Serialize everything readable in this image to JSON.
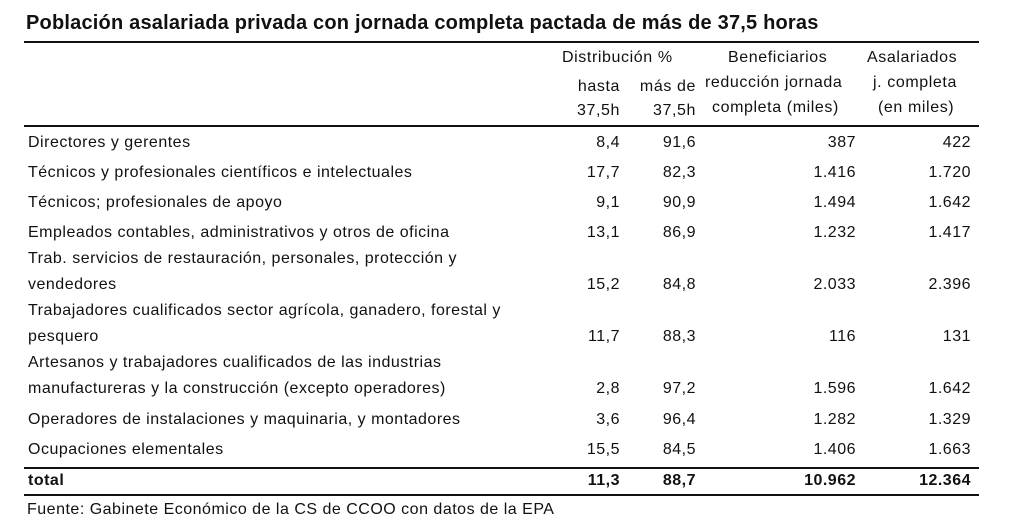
{
  "title": "Población asalariada privada con jornada completa pactada de más de 37,5 horas",
  "header": {
    "group": "Distribución %",
    "col1": [
      "hasta",
      "37,5h"
    ],
    "col2": [
      "más de",
      "37,5h"
    ],
    "col3": [
      "Beneficiarios",
      "reducción jornada",
      "completa (miles)"
    ],
    "col4": [
      "Asalariados",
      "j. completa",
      "(en miles)"
    ]
  },
  "rows": [
    {
      "label": "Directores y gerentes",
      "v1": "8,4",
      "v2": "91,6",
      "v3": "387",
      "v4": "422"
    },
    {
      "label": "Técnicos y profesionales científicos e intelectuales",
      "v1": "17,7",
      "v2": "82,3",
      "v3": "1.416",
      "v4": "1.720"
    },
    {
      "label": "Técnicos; profesionales de apoyo",
      "v1": "9,1",
      "v2": "90,9",
      "v3": "1.494",
      "v4": "1.642"
    },
    {
      "label": "Empleados contables, administrativos y otros de oficina",
      "v1": "13,1",
      "v2": "86,9",
      "v3": "1.232",
      "v4": "1.417"
    },
    {
      "label": "Trab. servicios de restauración, personales, protección y vendedores",
      "v1": "15,2",
      "v2": "84,8",
      "v3": "2.033",
      "v4": "2.396"
    },
    {
      "label": "Trabajadores cualificados sector agrícola, ganadero, forestal y pesquero",
      "v1": "11,7",
      "v2": "88,3",
      "v3": "116",
      "v4": "131"
    },
    {
      "label": "Artesanos y trabajadores cualificados de las industrias manufactureras y la construcción (excepto operadores)",
      "v1": "2,8",
      "v2": "97,2",
      "v3": "1.596",
      "v4": "1.642"
    },
    {
      "label": "Operadores de instalaciones y maquinaria, y montadores",
      "v1": "3,6",
      "v2": "96,4",
      "v3": "1.282",
      "v4": "1.329"
    },
    {
      "label": "Ocupaciones elementales",
      "v1": "15,5",
      "v2": "84,5",
      "v3": "1.406",
      "v4": "1.663"
    }
  ],
  "total": {
    "label": "total",
    "v1": "11,3",
    "v2": "88,7",
    "v3": "10.962",
    "v4": "12.364"
  },
  "source": "Fuente: Gabinete Económico de la CS de CCOO con datos de la EPA"
}
